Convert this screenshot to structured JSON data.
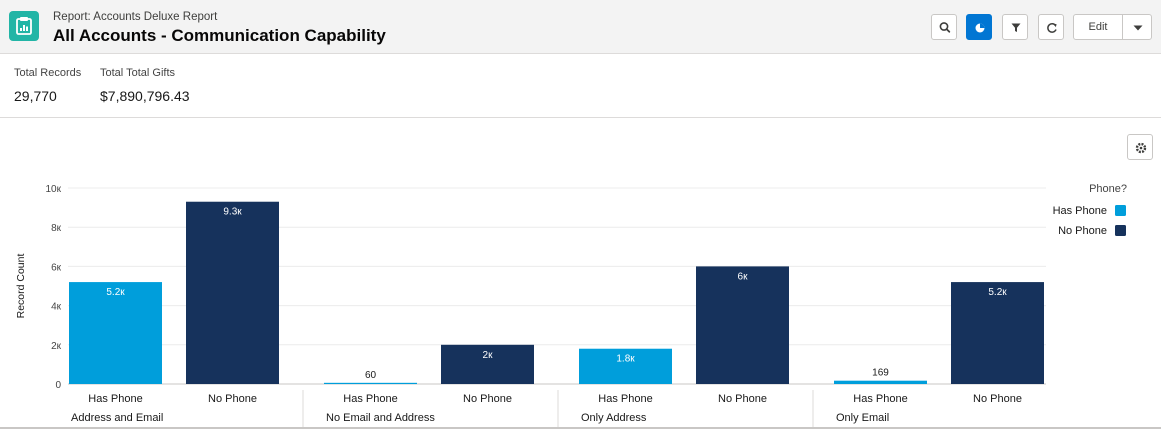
{
  "header": {
    "subtitle": "Report: Accounts Deluxe Report",
    "title": "All Accounts - Communication Capability",
    "app_icon": "report-icon",
    "toolbar": {
      "search_icon": "search-icon",
      "chart_icon": "chart-toggle-icon",
      "filter_icon": "filter-icon",
      "refresh_icon": "refresh-icon",
      "edit_label": "Edit",
      "dropdown_icon": "chevron-down-icon"
    },
    "accent_color": "#0176d3"
  },
  "summary": {
    "total_records_label": "Total Records",
    "total_records_value": "29,770",
    "total_gifts_label": "Total Total Gifts",
    "total_gifts_value": "$7,890,796.43"
  },
  "chart_settings_icon": "gear-icon",
  "chart_data": {
    "type": "bar",
    "ylabel": "Record Count",
    "ylim": [
      0,
      10000
    ],
    "yticks": [
      0,
      2000,
      4000,
      6000,
      8000,
      10000
    ],
    "ytick_labels": [
      "0",
      "2к",
      "4к",
      "6к",
      "8к",
      "10к"
    ],
    "legend_title": "Phone?",
    "legend_position": "top-right",
    "grid": true,
    "series": [
      {
        "name": "Has Phone",
        "color": "#009edb"
      },
      {
        "name": "No Phone",
        "color": "#16325c"
      }
    ],
    "groups": [
      {
        "name": "Address and Email",
        "bars": [
          {
            "series": "Has Phone",
            "label": "Has Phone",
            "value": 5200,
            "data_label": "5.2к"
          },
          {
            "series": "No Phone",
            "label": "No Phone",
            "value": 9300,
            "data_label": "9.3к"
          }
        ]
      },
      {
        "name": "No Email and Address",
        "bars": [
          {
            "series": "Has Phone",
            "label": "Has Phone",
            "value": 60,
            "data_label": "60"
          },
          {
            "series": "No Phone",
            "label": "No Phone",
            "value": 2000,
            "data_label": "2к"
          }
        ]
      },
      {
        "name": "Only Address",
        "bars": [
          {
            "series": "Has Phone",
            "label": "Has Phone",
            "value": 1800,
            "data_label": "1.8к"
          },
          {
            "series": "No Phone",
            "label": "No Phone",
            "value": 6000,
            "data_label": "6к"
          }
        ]
      },
      {
        "name": "Only Email",
        "bars": [
          {
            "series": "Has Phone",
            "label": "Has Phone",
            "value": 169,
            "data_label": "169"
          },
          {
            "series": "No Phone",
            "label": "No Phone",
            "value": 5200,
            "data_label": "5.2к"
          }
        ]
      }
    ]
  }
}
